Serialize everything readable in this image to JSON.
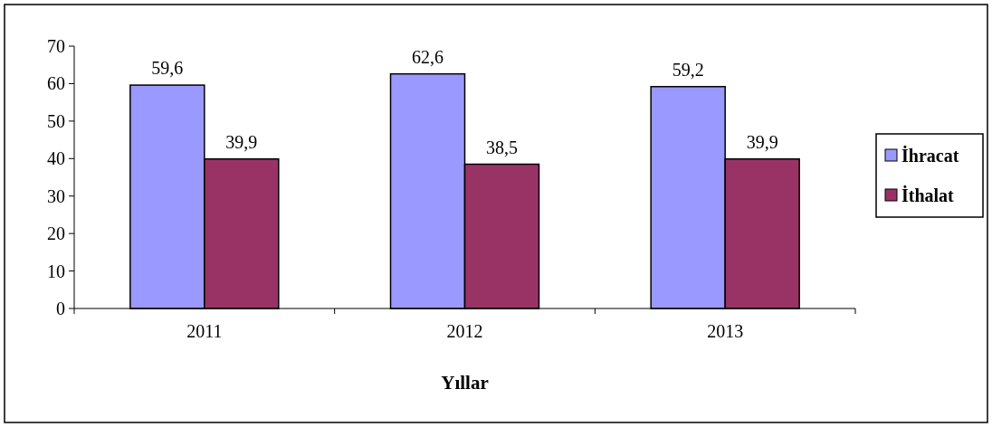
{
  "chart_data": {
    "type": "bar",
    "xlabel": "Yıllar",
    "categories": [
      "2011",
      "2012",
      "2013"
    ],
    "series": [
      {
        "name": "İhracat",
        "color": "#9999ff",
        "values": [
          59.6,
          62.6,
          59.2
        ],
        "value_labels": [
          "59,6",
          "62,6",
          "59,2"
        ]
      },
      {
        "name": "İthalat",
        "color": "#993366",
        "values": [
          39.9,
          38.5,
          39.9
        ],
        "value_labels": [
          "39,9",
          "38,5",
          "39,9"
        ]
      }
    ],
    "ylim": [
      0,
      70
    ],
    "yticks": [
      0,
      10,
      20,
      30,
      40,
      50,
      60,
      70
    ],
    "grid": false,
    "legend": "right"
  }
}
